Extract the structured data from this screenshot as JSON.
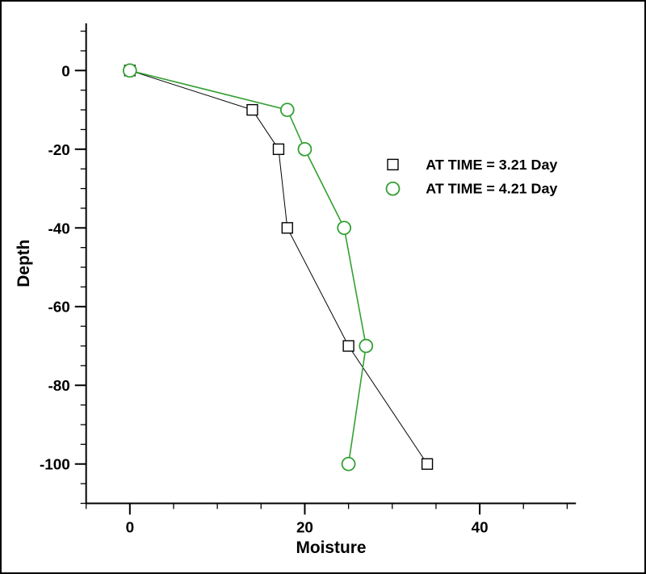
{
  "frame": {
    "background": "#ffffff",
    "border_color": "#000000"
  },
  "chart_data": {
    "type": "line",
    "title": "",
    "xlabel": "Moisture",
    "ylabel": "Depth",
    "xlim": [
      -5,
      51
    ],
    "ylim": [
      -110,
      12
    ],
    "x_major_ticks": [
      0,
      20,
      40
    ],
    "x_minor_step": 5,
    "y_major_ticks": [
      0,
      -20,
      -40,
      -60,
      -80,
      -100
    ],
    "y_minor_step": 5,
    "grid": false,
    "legend_position": "upper-right-inside",
    "axis_color": "#000000",
    "series": [
      {
        "name": "AT TIME = 3.21 Day",
        "marker": "square",
        "color": "#000000",
        "line_width": 1,
        "points": [
          [
            0,
            0
          ],
          [
            14,
            -10
          ],
          [
            17,
            -20
          ],
          [
            18,
            -40
          ],
          [
            25,
            -70
          ],
          [
            34,
            -100
          ]
        ]
      },
      {
        "name": "AT TIME = 4.21 Day",
        "marker": "circle",
        "color": "#32A032",
        "line_width": 1.6,
        "points": [
          [
            0,
            0
          ],
          [
            18,
            -10
          ],
          [
            20,
            -20
          ],
          [
            24.5,
            -40
          ],
          [
            27,
            -70
          ],
          [
            25,
            -100
          ]
        ]
      }
    ]
  }
}
